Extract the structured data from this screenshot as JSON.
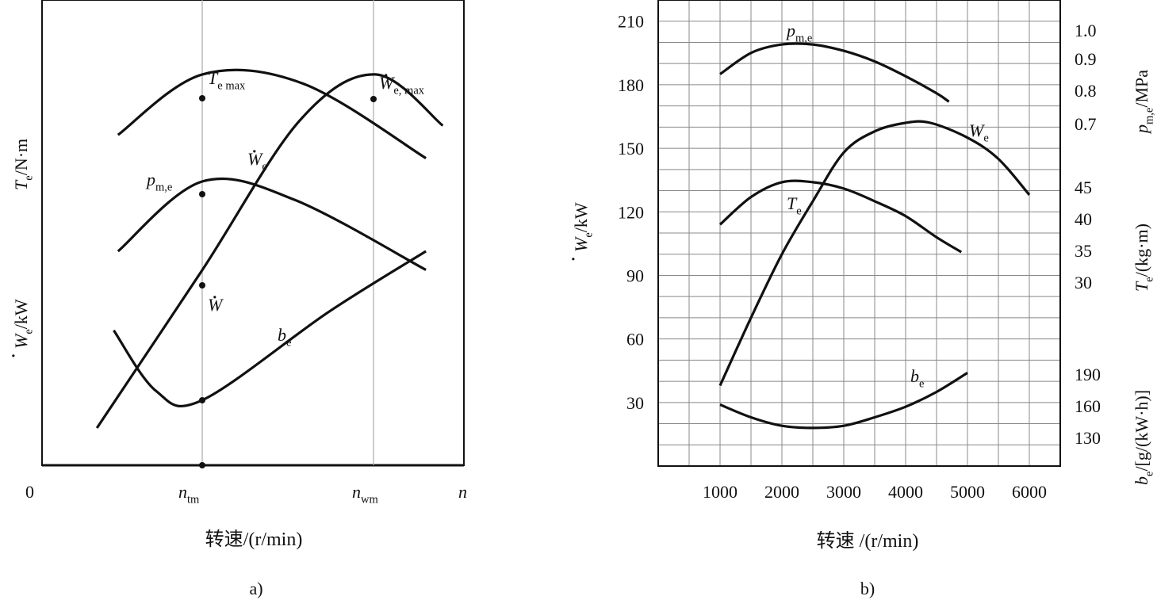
{
  "chart_data": [
    {
      "panel": "a)",
      "type": "line",
      "x_axis": {
        "origin_label": "0",
        "end_label": "n",
        "tick_labels": [
          {
            "base": "n",
            "sub": "tm"
          },
          {
            "base": "n",
            "sub": "wm"
          }
        ],
        "title": "转速/(r/min)"
      },
      "y_axis_labels": [
        {
          "base": "T",
          "sub": "e",
          "unit": "/N·m"
        },
        {
          "base": "W",
          "sub": "e",
          "unit": "/kW"
        }
      ],
      "series": [
        {
          "name": "T_e",
          "points": [
            [
              0.18,
              0.71
            ],
            [
              0.38,
              0.84
            ],
            [
              0.62,
              0.82
            ],
            [
              0.91,
              0.66
            ]
          ]
        },
        {
          "name": "W_e",
          "points": [
            [
              0.13,
              0.08
            ],
            [
              0.38,
              0.42
            ],
            [
              0.61,
              0.74
            ],
            [
              0.79,
              0.84
            ],
            [
              0.95,
              0.73
            ]
          ]
        },
        {
          "name": "p_m,e",
          "points": [
            [
              0.18,
              0.46
            ],
            [
              0.38,
              0.61
            ],
            [
              0.6,
              0.57
            ],
            [
              0.91,
              0.42
            ]
          ]
        },
        {
          "name": "b_e",
          "points": [
            [
              0.17,
              0.29
            ],
            [
              0.27,
              0.16
            ],
            [
              0.38,
              0.14
            ],
            [
              0.68,
              0.33
            ],
            [
              0.91,
              0.46
            ]
          ]
        }
      ],
      "annotations": [
        {
          "base": "T",
          "sub": "e max"
        },
        {
          "base": "W",
          "sub": "e, max",
          "dot": true
        },
        {
          "base": "W",
          "sub": "e",
          "dot": true
        },
        {
          "base": "p",
          "sub": "m,e"
        },
        {
          "base": "W",
          "sub": "",
          "dot": true
        },
        {
          "base": "b",
          "sub": "e"
        }
      ],
      "caption": "a)"
    },
    {
      "panel": "b)",
      "type": "line",
      "x": {
        "range": [
          0,
          6500
        ],
        "ticks": [
          1000,
          2000,
          3000,
          4000,
          5000,
          6000
        ],
        "title": "转速 /(r/min)"
      },
      "y_left": {
        "range": [
          0,
          220
        ],
        "ticks": [
          30,
          60,
          90,
          120,
          150,
          180,
          210
        ],
        "label_base": "W",
        "label_sub": "e",
        "label_unit": "/kW"
      },
      "y_right_axes": [
        {
          "label_base": "p",
          "label_sub": "m,e",
          "label_unit": "/MPa",
          "ticks": [
            "1.0",
            "0.9",
            "0.8",
            "0.7"
          ]
        },
        {
          "label_base": "T",
          "label_sub": "e",
          "label_unit": "/(kg·m)",
          "ticks": [
            "45",
            "40",
            "35",
            "30"
          ]
        },
        {
          "label_base": "b",
          "label_sub": "e",
          "label_unit": "/[g/(kW·h)]",
          "ticks": [
            "190",
            "160",
            "130"
          ]
        }
      ],
      "grid": true,
      "series": [
        {
          "name": "p_m,e",
          "x": [
            1000,
            1500,
            2000,
            2500,
            3000,
            3500,
            4000,
            4500,
            4700
          ],
          "y_left_equiv": [
            185,
            195,
            199,
            199,
            196,
            191,
            184,
            176,
            172
          ]
        },
        {
          "name": "W_e",
          "x": [
            1000,
            1500,
            2000,
            2500,
            3000,
            3500,
            4000,
            4400,
            5000,
            5500,
            6000
          ],
          "y": [
            38,
            70,
            100,
            125,
            148,
            158,
            162,
            162,
            155,
            145,
            128
          ]
        },
        {
          "name": "T_e",
          "x": [
            1000,
            1500,
            2000,
            2500,
            3000,
            3500,
            4000,
            4500,
            4900
          ],
          "y_left_equiv": [
            114,
            127,
            134,
            134,
            131,
            125,
            118,
            108,
            101
          ]
        },
        {
          "name": "b_e",
          "x": [
            1000,
            1500,
            2000,
            2500,
            3000,
            3500,
            4000,
            4500,
            5000
          ],
          "y_left_equiv": [
            29,
            23,
            19,
            18,
            19,
            23,
            28,
            35,
            44
          ]
        }
      ],
      "labels": [
        {
          "base": "p",
          "sub": "m,e"
        },
        {
          "base": "W",
          "sub": "e"
        },
        {
          "base": "T",
          "sub": "e"
        },
        {
          "base": "b",
          "sub": "e"
        }
      ],
      "caption": "b)"
    }
  ]
}
